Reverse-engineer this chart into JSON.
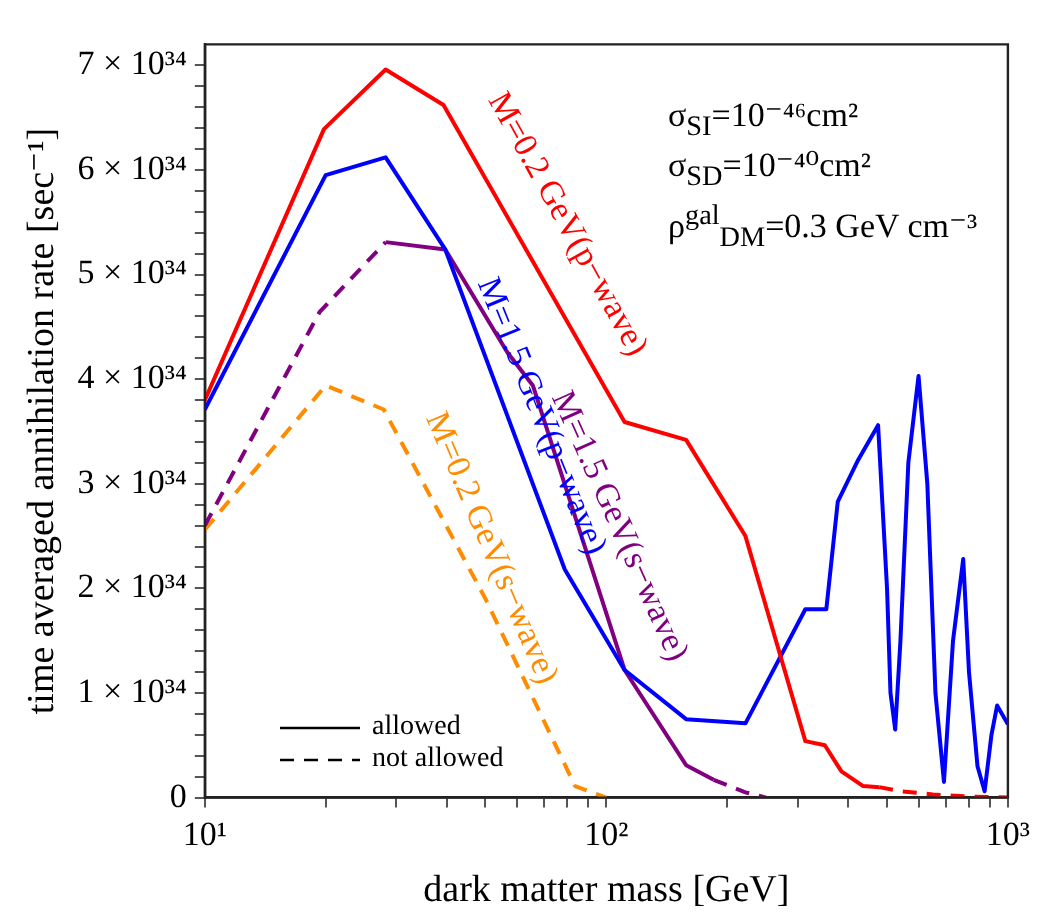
{
  "chart_data": {
    "type": "line",
    "xlabel": "dark matter mass [GeV]",
    "ylabel": "time averaged annihilation rate [sec⁻¹]",
    "log": "x",
    "xlim": [
      10,
      1000
    ],
    "xticks": [
      {
        "value": 10,
        "label": "10¹"
      },
      {
        "value": 20,
        "label": null
      },
      {
        "value": 30,
        "label": null
      },
      {
        "value": 40,
        "label": null
      },
      {
        "value": 50,
        "label": null
      },
      {
        "value": 60,
        "label": null
      },
      {
        "value": 70,
        "label": null
      },
      {
        "value": 80,
        "label": null
      },
      {
        "value": 90,
        "label": null
      },
      {
        "value": 100,
        "label": "10²"
      },
      {
        "value": 200,
        "label": null
      },
      {
        "value": 300,
        "label": null
      },
      {
        "value": 400,
        "label": null
      },
      {
        "value": 500,
        "label": null
      },
      {
        "value": 600,
        "label": null
      },
      {
        "value": 700,
        "label": null
      },
      {
        "value": 800,
        "label": null
      },
      {
        "value": 900,
        "label": null
      },
      {
        "value": 1000,
        "label": "10³"
      }
    ],
    "ylim": [
      0,
      7.2e+34
    ],
    "yticks": [
      0,
      {
        "value": 2e+33,
        "label": null
      },
      {
        "value": 4e+33,
        "label": null
      },
      {
        "value": 6e+33,
        "label": null
      },
      {
        "value": 8e+33,
        "label": null
      },
      {
        "value": 1e+34,
        "label": "1 × 10³⁴"
      },
      {
        "value": 1.2e+34,
        "label": null
      },
      {
        "value": 1.4e+34,
        "label": null
      },
      {
        "value": 1.6e+34,
        "label": null
      },
      {
        "value": 1.8e+34,
        "label": null
      },
      {
        "value": 2e+34,
        "label": "2 × 10³⁴"
      },
      {
        "value": 2.2e+34,
        "label": null
      },
      {
        "value": 2.4e+34,
        "label": null
      },
      {
        "value": 2.6e+34,
        "label": null
      },
      {
        "value": 2.8e+34,
        "label": null
      },
      {
        "value": 3e+34,
        "label": "3 × 10³⁴"
      },
      {
        "value": 3.2e+34,
        "label": null
      },
      {
        "value": 3.4e+34,
        "label": null
      },
      {
        "value": 3.6e+34,
        "label": null
      },
      {
        "value": 3.8e+34,
        "label": null
      },
      {
        "value": 4e+34,
        "label": "4 × 10³⁴"
      },
      {
        "value": 4.2e+34,
        "label": null
      },
      {
        "value": 4.4e+34,
        "label": null
      },
      {
        "value": 4.6e+34,
        "label": null
      },
      {
        "value": 4.8e+34,
        "label": null
      },
      {
        "value": 5e+34,
        "label": "5 × 10³⁴"
      },
      {
        "value": 5.2e+34,
        "label": null
      },
      {
        "value": 5.4e+34,
        "label": null
      },
      {
        "value": 5.6e+34,
        "label": null
      },
      {
        "value": 5.8e+34,
        "label": null
      },
      {
        "value": 6e+34,
        "label": "6 × 10³⁴"
      },
      {
        "value": 6.2e+34,
        "label": null
      },
      {
        "value": 6.4e+34,
        "label": null
      },
      {
        "value": 6.6e+34,
        "label": null
      },
      {
        "value": 6.8e+34,
        "label": null
      },
      {
        "value": 7e+34,
        "label": "7 × 10³⁴"
      }
    ],
    "grid": false,
    "marker": "none",
    "series": [
      {
        "name": "M=0.2 GeV(p−wave)",
        "color": "#ff0000",
        "line_style": "solid",
        "x": [
          10,
          19.8,
          28.2,
          39.3,
          111,
          158,
          222,
          313,
          350,
          385,
          436,
          478
        ],
        "values": [
          3.8e+34,
          6.39e+34,
          6.96e+34,
          6.62e+34,
          3.59e+34,
          3.42e+34,
          2.5e+34,
          5.4e+33,
          5e+33,
          2.5e+33,
          1.1e+33,
          1e+33
        ]
      },
      {
        "color": "#ff0000",
        "line_style": "dashed",
        "x": [
          478,
          543,
          650,
          800,
          1000
        ],
        "values": [
          1e+33,
          6e+32,
          3e+32,
          1e+32,
          0
        ]
      },
      {
        "name": "M=1.5 GeV(p−wave)",
        "color": "#0000ff",
        "line_style": "solid",
        "x": [
          10,
          20,
          28.2,
          39.7,
          78.8,
          111,
          158,
          222,
          313,
          353,
          377,
          424,
          475,
          500,
          510,
          524,
          540,
          565,
          599,
          630,
          660,
          693,
          730,
          774,
          800,
          840,
          875,
          910,
          940,
          1000
        ],
        "values": [
          3.71e+34,
          5.95e+34,
          6.12e+34,
          5.24e+34,
          2.18e+34,
          1.22e+34,
          7.5e+33,
          7.1e+33,
          1.8e+34,
          1.8e+34,
          2.83e+34,
          3.23e+34,
          3.56e+34,
          2e+34,
          1e+34,
          6.5e+33,
          1.5e+34,
          3.2e+34,
          4.03e+34,
          3e+34,
          1e+34,
          1.5e+33,
          1.5e+34,
          2.28e+34,
          1.2e+34,
          3e+33,
          6e+32,
          6e+33,
          8.8e+33,
          7e+33
        ]
      },
      {
        "color": "#800080",
        "line_style": "dashed",
        "x": [
          10,
          19.3,
          28.2
        ],
        "values": [
          2.6e+34,
          4.64e+34,
          5.31e+34
        ]
      },
      {
        "name": "M=1.5 GeV(s−wave)",
        "color": "#800080",
        "line_style": "solid",
        "x": [
          28.2,
          39.7,
          56.6,
          65.6,
          111,
          158,
          185
        ],
        "values": [
          5.31e+34,
          5.24e+34,
          4.26e+34,
          3.94e+34,
          1.22e+34,
          3.1e+33,
          1.7e+33
        ]
      },
      {
        "color": "#800080",
        "line_style": "dashed",
        "x": [
          185,
          222,
          250
        ],
        "values": [
          1.7e+33,
          5e+32,
          0
        ]
      },
      {
        "name": "M=0.2 GeV(s−wave)",
        "color": "#ff8c00",
        "line_style": "dashed",
        "x": [
          10,
          20,
          27.9,
          50,
          83.6,
          100
        ],
        "values": [
          2.56e+34,
          3.94e+34,
          3.71e+34,
          1.9e+34,
          1.1e+33,
          0
        ]
      }
    ],
    "annotations": [
      "σ$_{SI}$=10⁻⁴⁶cm²",
      "σ$_{SD}$=10⁻⁴⁰cm²",
      "ρ$^{gal}$$_{DM}$=0.3 GeV cm⁻³",
      "allowed",
      "not allowed"
    ]
  }
}
